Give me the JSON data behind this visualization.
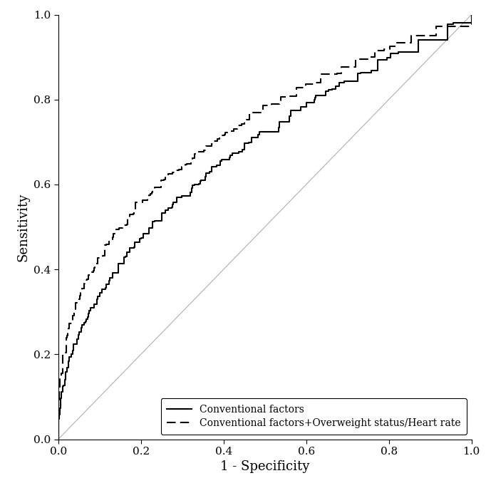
{
  "title": "",
  "xlabel": "1 - Specificity",
  "ylabel": "Sensitivity",
  "xlim": [
    0.0,
    1.0
  ],
  "ylim": [
    0.0,
    1.0
  ],
  "xticks": [
    0.0,
    0.2,
    0.4,
    0.6,
    0.8,
    1.0
  ],
  "yticks": [
    0.0,
    0.2,
    0.4,
    0.6,
    0.8,
    1.0
  ],
  "diagonal_color": "#b0b0b0",
  "curve1_color": "#000000",
  "curve2_color": "#000000",
  "legend_labels": [
    "Conventional factors",
    "Conventional factors+Overweight status/Heart rate"
  ],
  "background_color": "#ffffff",
  "axis_color": "#000000",
  "fontsize_axis_label": 13,
  "fontsize_tick": 11,
  "fontsize_legend": 10,
  "legend_loc": "lower right",
  "linewidth_curve": 1.5,
  "linewidth_diag": 0.8,
  "auc1": 0.68,
  "auc2": 0.73,
  "n_steps1": 350,
  "n_steps2": 350,
  "seed1": 42,
  "seed2": 17
}
